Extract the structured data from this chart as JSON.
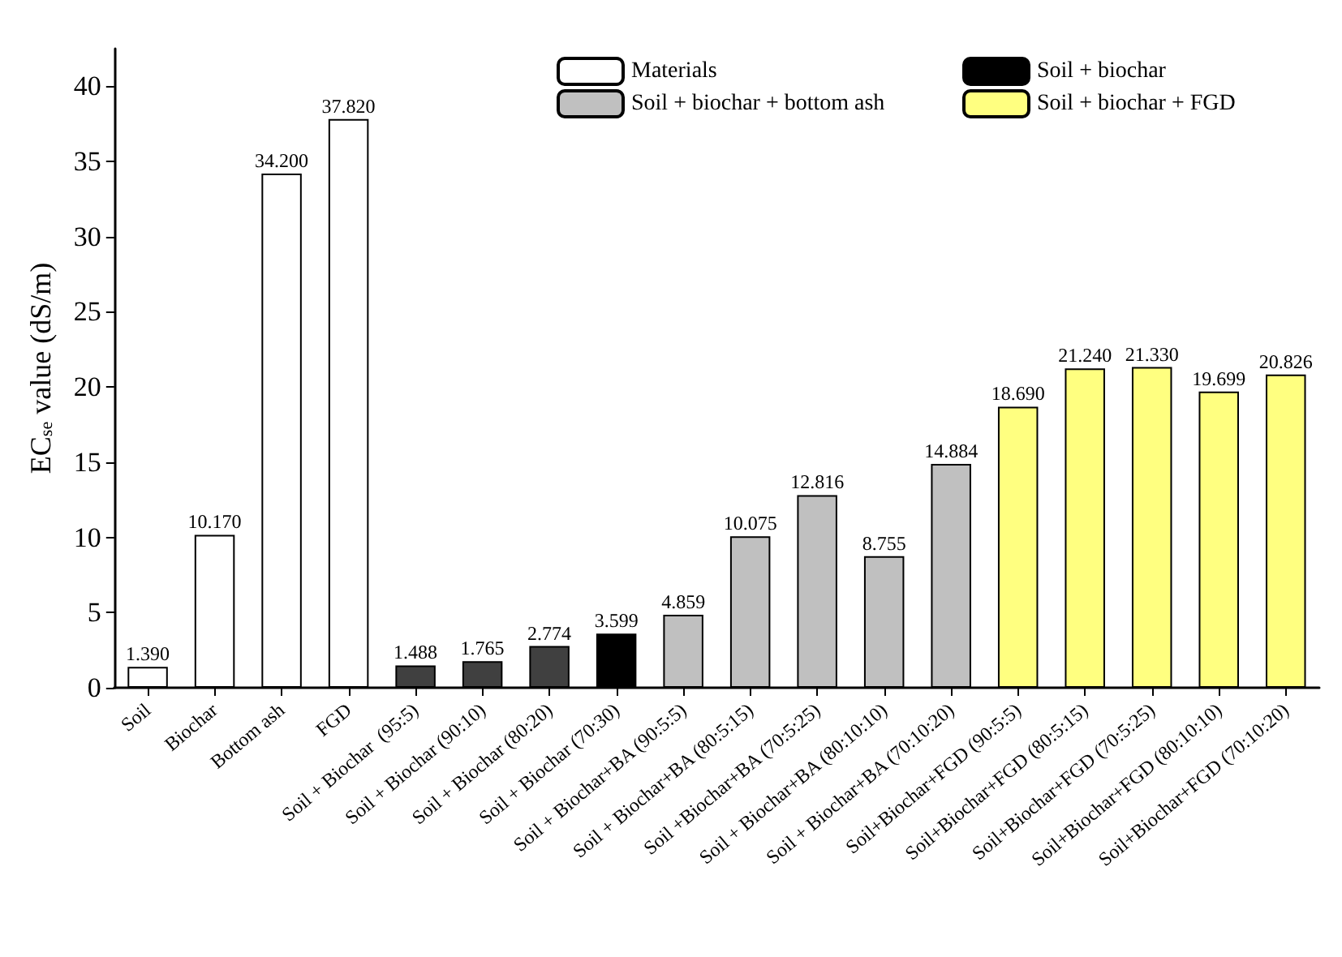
{
  "chart_data": {
    "type": "bar",
    "ylabel": "EC$_{se}$ value (dS/m)",
    "categories": [
      "Soil",
      "Biochar",
      "Bottom ash",
      "FGD",
      "Soil + Biochar  (95:5)",
      "Soil + Biochar (90:10)",
      "Soil + Biochar (80:20)",
      "Soil + Biochar (70:30)",
      "Soil + Biochar+BA (90:5:5)",
      "Soil + Biochar+BA (80:5:15)",
      "Soil +Biochar+BA (70:5:25)",
      "Soil + Biochar+BA (80:10:10)",
      "Soil + Biochar+BA (70:10:20)",
      "Soil+Biochar+FGD (90:5:5)",
      "Soil+Biochar+FGD (80:5:15)",
      "Soil+Biochar+FGD (70:5:25)",
      "Soil+Biochar+FGD (80:10:10)",
      "Soil+Biochar+FGD (70:10:20)"
    ],
    "series": [
      {
        "name": "Materials",
        "color": "#ffffff",
        "values": [
          1.39,
          10.17,
          34.2,
          37.82,
          null,
          null,
          null,
          null,
          null,
          null,
          null,
          null,
          null,
          null,
          null,
          null,
          null,
          null
        ],
        "value_labels": [
          "1.390",
          "10.170",
          "34.200",
          "37.820",
          null,
          null,
          null,
          null,
          null,
          null,
          null,
          null,
          null,
          null,
          null,
          null,
          null,
          null
        ]
      },
      {
        "name": "Soil + biochar + bottom ash",
        "color": "#c0c0c0",
        "values": [
          null,
          null,
          null,
          null,
          null,
          null,
          null,
          null,
          4.859,
          10.075,
          12.816,
          8.755,
          14.884,
          null,
          null,
          null,
          null,
          null
        ],
        "value_labels": [
          null,
          null,
          null,
          null,
          null,
          null,
          null,
          null,
          "4.859",
          "10.075",
          "12.816",
          "8.755",
          "14.884",
          null,
          null,
          null,
          null,
          null
        ]
      },
      {
        "name": "Soil + biochar",
        "color": "#000000",
        "colors": [
          null,
          null,
          null,
          null,
          "#404040",
          "#404040",
          "#404040",
          "#000000",
          null,
          null,
          null,
          null,
          null,
          null,
          null,
          null,
          null,
          null
        ],
        "values": [
          null,
          null,
          null,
          null,
          1.488,
          1.765,
          2.774,
          3.599,
          null,
          null,
          null,
          null,
          null,
          null,
          null,
          null,
          null,
          null
        ],
        "value_labels": [
          null,
          null,
          null,
          null,
          "1.488",
          "1.765",
          "2.774",
          "3.599",
          null,
          null,
          null,
          null,
          null,
          null,
          null,
          null,
          null,
          null
        ]
      },
      {
        "name": "Soil + biochar + FGD",
        "color": "#ffff80",
        "values": [
          null,
          null,
          null,
          null,
          null,
          null,
          null,
          null,
          null,
          null,
          null,
          null,
          null,
          18.69,
          21.24,
          21.33,
          19.699,
          20.826
        ],
        "value_labels": [
          null,
          null,
          null,
          null,
          null,
          null,
          null,
          null,
          null,
          null,
          null,
          null,
          null,
          "18.690",
          "21.240",
          "21.330",
          "19.699",
          "20.826"
        ]
      }
    ],
    "ylim": [
      0,
      42.5
    ],
    "yticks": [
      0,
      5,
      10,
      15,
      20,
      25,
      30,
      35,
      40
    ],
    "grid": false,
    "legend": "top right"
  }
}
